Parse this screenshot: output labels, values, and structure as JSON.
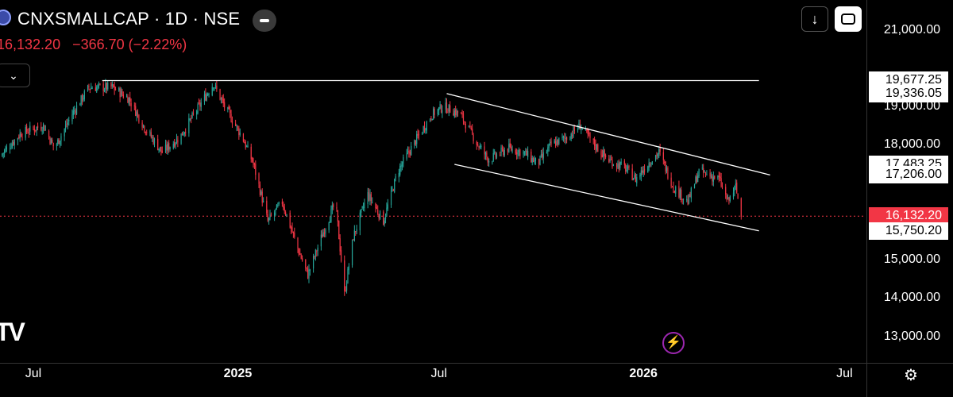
{
  "header": {
    "title": "CNXSMALLCAP · 1D · NSE",
    "price": "16,132.20",
    "change": "−366.70 (−2.22%)"
  },
  "icons": {
    "symbol": "symbol-logo-icon",
    "collapse": "minus-icon",
    "dropdown": "chevron-down-icon",
    "download": "arrow-down-icon",
    "expand": "expand-icon",
    "brand": "tradingview-logo-icon",
    "alert": "lightning-icon",
    "settings": "settings-icon"
  },
  "dropdown_label": "⌄",
  "download_label": "↓",
  "brand_label": "TV",
  "settings_label": "⚙",
  "alert_label": "⚡",
  "colors": {
    "up": "#26a69a",
    "down": "#f23645",
    "lines": "#ffffff",
    "last_price": "#f23645"
  },
  "chart_data": {
    "type": "candlestick",
    "x_range": [
      "2024-06-01",
      "2026-07-20"
    ],
    "ylim": [
      12500,
      21500
    ],
    "y_ticks": [
      {
        "label": "21,000.00",
        "value": 21000
      },
      {
        "label": "19,000.00",
        "value": 19000
      },
      {
        "label": "18,000.00",
        "value": 18000
      },
      {
        "label": "15,000.00",
        "value": 15000
      },
      {
        "label": "14,000.00",
        "value": 14000
      },
      {
        "label": "13,000.00",
        "value": 13000
      }
    ],
    "x_ticks": [
      {
        "label": "Jul",
        "date": "2024-07-01",
        "bold": false
      },
      {
        "label": "2025",
        "date": "2025-01-01",
        "bold": true
      },
      {
        "label": "Jul",
        "date": "2025-07-01",
        "bold": false
      },
      {
        "label": "2026",
        "date": "2026-01-01",
        "bold": true
      },
      {
        "label": "Jul",
        "date": "2026-07-01",
        "bold": false
      }
    ],
    "price_labels": [
      {
        "label": "19,677.25",
        "value": 19677.25,
        "style": "white"
      },
      {
        "label": "19,336.05",
        "value": 19336.05,
        "style": "white"
      },
      {
        "label": "17,483.25",
        "value": 17483.25,
        "style": "white"
      },
      {
        "label": "17,206.00",
        "value": 17206.0,
        "style": "white"
      },
      {
        "label": "16,132.20",
        "value": 16132.2,
        "style": "red"
      },
      {
        "label": "15,750.20",
        "value": 15750.2,
        "style": "white"
      }
    ],
    "last_price": 16132.2,
    "trendlines": [
      {
        "name": "resistance",
        "start": [
          "2024-09-01",
          19677.25
        ],
        "end": [
          "2026-04-15",
          19677.25
        ]
      },
      {
        "name": "channel-top",
        "start": [
          "2025-07-08",
          19336.05
        ],
        "end": [
          "2026-04-25",
          17206.0
        ]
      },
      {
        "name": "channel-bottom",
        "start": [
          "2025-07-15",
          17483.25
        ],
        "end": [
          "2026-04-15",
          15750.2
        ]
      }
    ],
    "price_path": [
      [
        "2024-06-01",
        17700
      ],
      [
        "2024-06-20",
        18300
      ],
      [
        "2024-07-10",
        18500
      ],
      [
        "2024-07-20",
        17900
      ],
      [
        "2024-08-05",
        18800
      ],
      [
        "2024-08-20",
        19500
      ],
      [
        "2024-09-10",
        19500
      ],
      [
        "2024-09-25",
        19200
      ],
      [
        "2024-10-10",
        18400
      ],
      [
        "2024-10-25",
        17800
      ],
      [
        "2024-11-10",
        18200
      ],
      [
        "2024-11-25",
        18900
      ],
      [
        "2024-12-10",
        19600
      ],
      [
        "2024-12-20",
        19000
      ],
      [
        "2025-01-05",
        18200
      ],
      [
        "2025-01-15",
        17500
      ],
      [
        "2025-01-28",
        16000
      ],
      [
        "2025-02-10",
        16500
      ],
      [
        "2025-02-25",
        15200
      ],
      [
        "2025-03-05",
        14600
      ],
      [
        "2025-03-20",
        15800
      ],
      [
        "2025-03-30",
        16500
      ],
      [
        "2025-04-07",
        14100
      ],
      [
        "2025-04-15",
        15600
      ],
      [
        "2025-04-28",
        16700
      ],
      [
        "2025-05-12",
        16000
      ],
      [
        "2025-05-25",
        17300
      ],
      [
        "2025-06-10",
        18100
      ],
      [
        "2025-06-25",
        18800
      ],
      [
        "2025-07-05",
        19000
      ],
      [
        "2025-07-20",
        18800
      ],
      [
        "2025-08-05",
        18000
      ],
      [
        "2025-08-15",
        17600
      ],
      [
        "2025-09-01",
        17900
      ],
      [
        "2025-09-15",
        17800
      ],
      [
        "2025-09-28",
        17500
      ],
      [
        "2025-10-10",
        18000
      ],
      [
        "2025-10-25",
        18200
      ],
      [
        "2025-11-05",
        18500
      ],
      [
        "2025-11-15",
        18100
      ],
      [
        "2025-11-30",
        17600
      ],
      [
        "2025-12-15",
        17400
      ],
      [
        "2025-12-25",
        17100
      ],
      [
        "2026-01-05",
        17500
      ],
      [
        "2026-01-15",
        17800
      ],
      [
        "2026-01-28",
        16900
      ],
      [
        "2026-02-10",
        16500
      ],
      [
        "2026-02-20",
        17300
      ],
      [
        "2026-03-01",
        17200
      ],
      [
        "2026-03-10",
        17100
      ],
      [
        "2026-03-18",
        16500
      ],
      [
        "2026-03-25",
        16900
      ],
      [
        "2026-03-30",
        16132
      ]
    ]
  }
}
